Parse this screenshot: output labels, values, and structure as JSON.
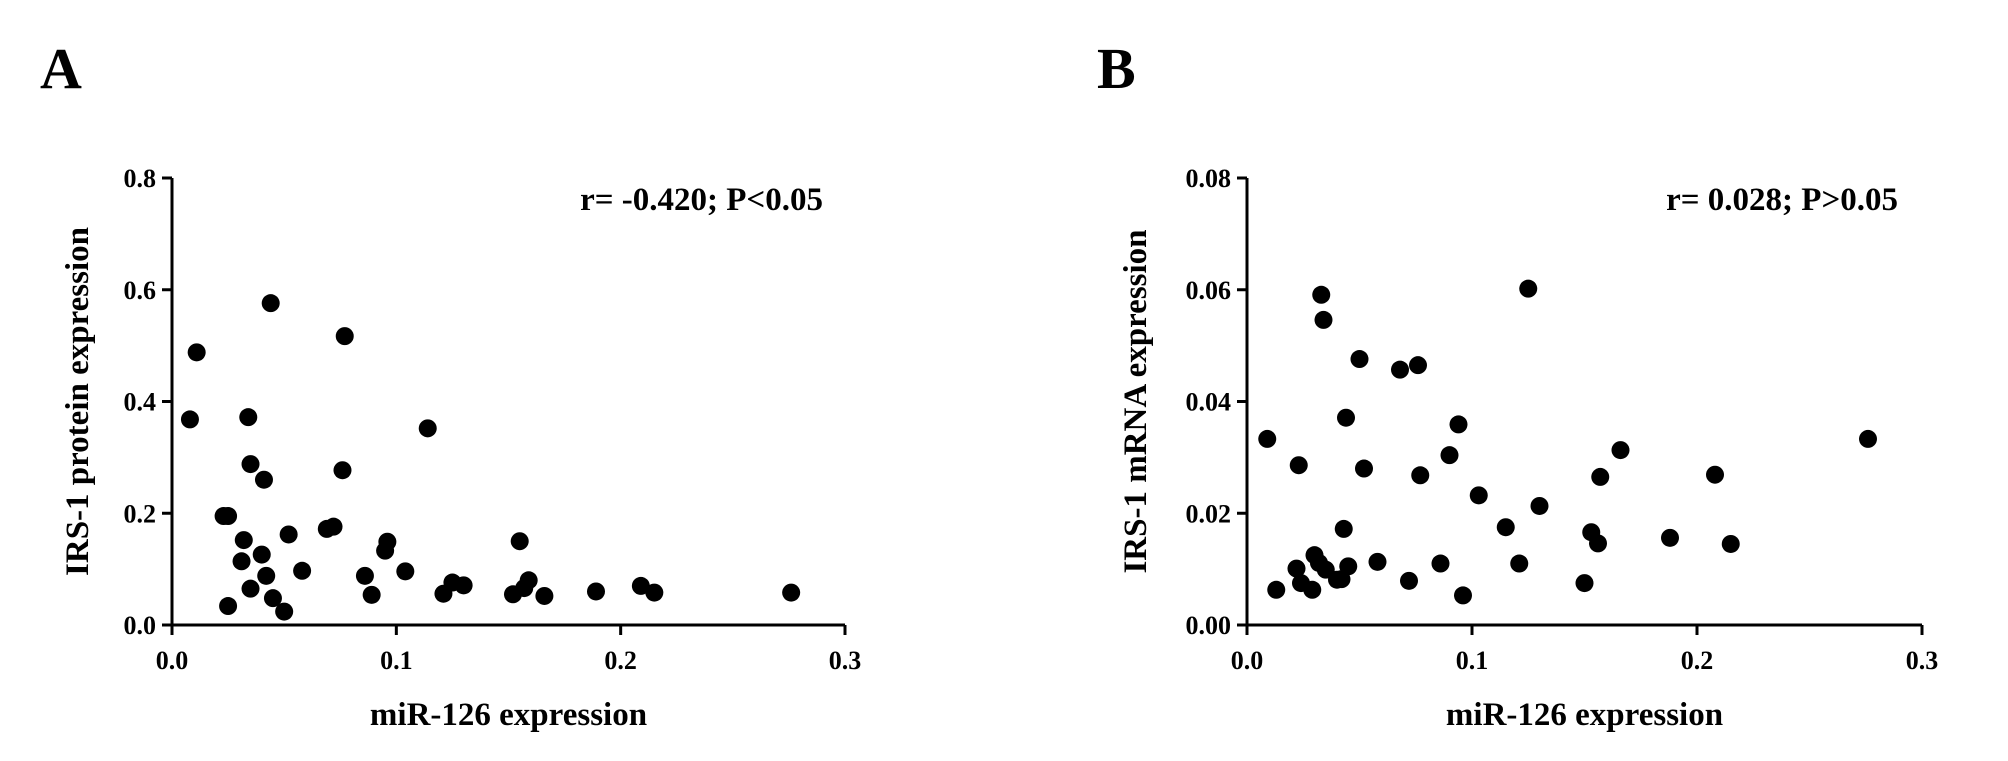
{
  "chart_data": [
    {
      "type": "scatter",
      "panel_label": "A",
      "xlabel": "miR-126 expression",
      "ylabel": "IRS-1 protein expression",
      "annotation": "r= -0.420; P<0.05",
      "xlim": [
        0,
        0.3
      ],
      "ylim": [
        0,
        0.8
      ],
      "xticks": [
        "0.0",
        "0.1",
        "0.2",
        "0.3"
      ],
      "yticks": [
        "0.0",
        "0.2",
        "0.4",
        "0.6",
        "0.8"
      ],
      "xtick_values": [
        0,
        0.1,
        0.2,
        0.3
      ],
      "ytick_values": [
        0,
        0.2,
        0.4,
        0.6,
        0.8
      ],
      "points": [
        [
          0.008,
          0.368
        ],
        [
          0.011,
          0.488
        ],
        [
          0.023,
          0.195
        ],
        [
          0.025,
          0.195
        ],
        [
          0.025,
          0.034
        ],
        [
          0.031,
          0.114
        ],
        [
          0.032,
          0.152
        ],
        [
          0.034,
          0.372
        ],
        [
          0.035,
          0.288
        ],
        [
          0.035,
          0.065
        ],
        [
          0.04,
          0.126
        ],
        [
          0.041,
          0.26
        ],
        [
          0.042,
          0.088
        ],
        [
          0.044,
          0.576
        ],
        [
          0.045,
          0.048
        ],
        [
          0.05,
          0.024
        ],
        [
          0.052,
          0.162
        ],
        [
          0.058,
          0.097
        ],
        [
          0.069,
          0.172
        ],
        [
          0.072,
          0.176
        ],
        [
          0.076,
          0.277
        ],
        [
          0.077,
          0.517
        ],
        [
          0.086,
          0.088
        ],
        [
          0.089,
          0.054
        ],
        [
          0.095,
          0.133
        ],
        [
          0.096,
          0.149
        ],
        [
          0.104,
          0.096
        ],
        [
          0.114,
          0.352
        ],
        [
          0.121,
          0.056
        ],
        [
          0.125,
          0.076
        ],
        [
          0.13,
          0.071
        ],
        [
          0.152,
          0.055
        ],
        [
          0.155,
          0.15
        ],
        [
          0.157,
          0.066
        ],
        [
          0.159,
          0.08
        ],
        [
          0.166,
          0.052
        ],
        [
          0.189,
          0.06
        ],
        [
          0.209,
          0.07
        ],
        [
          0.215,
          0.058
        ],
        [
          0.276,
          0.058
        ]
      ]
    },
    {
      "type": "scatter",
      "panel_label": "B",
      "xlabel": "miR-126 expression",
      "ylabel": "IRS-1 mRNA expression",
      "annotation": "r= 0.028; P>0.05",
      "xlim": [
        0,
        0.3
      ],
      "ylim": [
        0,
        0.08
      ],
      "xticks": [
        "0.0",
        "0.1",
        "0.2",
        "0.3"
      ],
      "yticks": [
        "0.00",
        "0.02",
        "0.04",
        "0.06",
        "0.08"
      ],
      "xtick_values": [
        0,
        0.1,
        0.2,
        0.3
      ],
      "ytick_values": [
        0,
        0.02,
        0.04,
        0.06,
        0.08
      ],
      "points": [
        [
          0.009,
          0.0333
        ],
        [
          0.013,
          0.0063
        ],
        [
          0.022,
          0.0101
        ],
        [
          0.023,
          0.0286
        ],
        [
          0.024,
          0.0075
        ],
        [
          0.029,
          0.0063
        ],
        [
          0.03,
          0.0125
        ],
        [
          0.032,
          0.0111
        ],
        [
          0.033,
          0.0591
        ],
        [
          0.034,
          0.0546
        ],
        [
          0.035,
          0.0099
        ],
        [
          0.04,
          0.0081
        ],
        [
          0.042,
          0.0082
        ],
        [
          0.043,
          0.0172
        ],
        [
          0.044,
          0.0371
        ],
        [
          0.045,
          0.0105
        ],
        [
          0.05,
          0.0476
        ],
        [
          0.052,
          0.028
        ],
        [
          0.058,
          0.0113
        ],
        [
          0.068,
          0.0457
        ],
        [
          0.072,
          0.0079
        ],
        [
          0.076,
          0.0465
        ],
        [
          0.077,
          0.0268
        ],
        [
          0.086,
          0.011
        ],
        [
          0.09,
          0.0304
        ],
        [
          0.094,
          0.0359
        ],
        [
          0.096,
          0.0053
        ],
        [
          0.103,
          0.0232
        ],
        [
          0.115,
          0.0175
        ],
        [
          0.121,
          0.011
        ],
        [
          0.125,
          0.0602
        ],
        [
          0.13,
          0.0213
        ],
        [
          0.15,
          0.0075
        ],
        [
          0.153,
          0.0166
        ],
        [
          0.156,
          0.0146
        ],
        [
          0.157,
          0.0265
        ],
        [
          0.166,
          0.0313
        ],
        [
          0.188,
          0.0156
        ],
        [
          0.208,
          0.0269
        ],
        [
          0.215,
          0.0145
        ],
        [
          0.276,
          0.0333
        ]
      ]
    }
  ]
}
